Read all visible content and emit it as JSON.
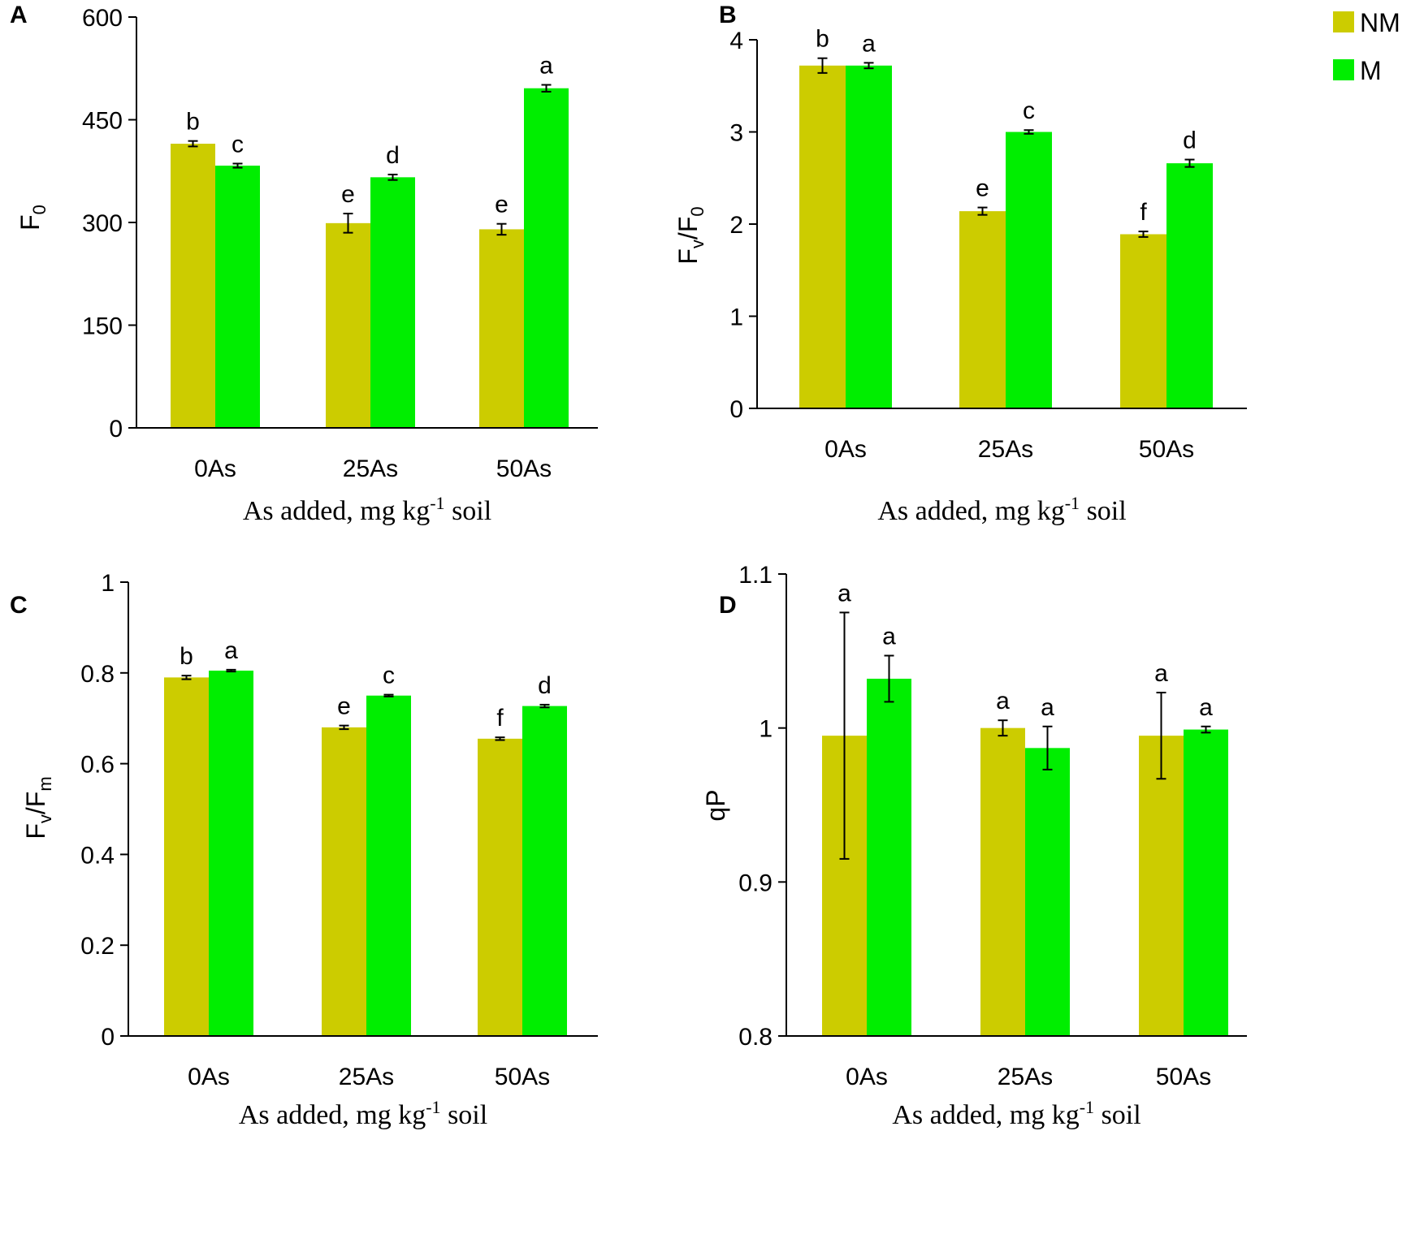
{
  "colors": {
    "NM": "#cccc00",
    "M": "#00ee00",
    "axis": "#000000"
  },
  "legend": [
    {
      "key": "NM",
      "label": "NM"
    },
    {
      "key": "M",
      "label": "M"
    }
  ],
  "chart_data": [
    {
      "type": "bar",
      "panel": "A",
      "categories": [
        "0As",
        "25As",
        "50As"
      ],
      "series": [
        {
          "name": "NM",
          "values": [
            415,
            299,
            290
          ],
          "errors": [
            4,
            14,
            8
          ],
          "letters": [
            "b",
            "e",
            "e"
          ]
        },
        {
          "name": "M",
          "values": [
            383,
            366,
            496
          ],
          "errors": [
            3,
            4,
            5
          ],
          "letters": [
            "c",
            "d",
            "a"
          ]
        }
      ],
      "ylim": [
        0,
        600
      ],
      "yticks": [
        0,
        150,
        300,
        450,
        600
      ],
      "ylabel": "F0",
      "ylabel_main": "F",
      "ylabel_sub": "0",
      "xlabel_pre": "As added, mg kg",
      "xlabel_sup": "-1",
      "xlabel_post": " soil"
    },
    {
      "type": "bar",
      "panel": "B",
      "categories": [
        "0As",
        "25As",
        "50As"
      ],
      "series": [
        {
          "name": "NM",
          "values": [
            3.72,
            2.14,
            1.89
          ],
          "errors": [
            0.08,
            0.04,
            0.03
          ],
          "letters": [
            "b",
            "e",
            "f"
          ]
        },
        {
          "name": "M",
          "values": [
            3.72,
            3.0,
            2.66
          ],
          "errors": [
            0.03,
            0.02,
            0.04
          ],
          "letters": [
            "a",
            "c",
            "d"
          ]
        }
      ],
      "ylim": [
        0,
        4
      ],
      "yticks": [
        0,
        1,
        2,
        3,
        4
      ],
      "ylabel": "Fv/F0",
      "ylabel_main": "F",
      "ylabel_sub": "v",
      "ylabel_mid": "/F",
      "ylabel_sub2": "0",
      "xlabel_pre": "As added, mg kg",
      "xlabel_sup": "-1",
      "xlabel_post": " soil"
    },
    {
      "type": "bar",
      "panel": "C",
      "categories": [
        "0As",
        "25As",
        "50As"
      ],
      "series": [
        {
          "name": "NM",
          "values": [
            0.79,
            0.68,
            0.655
          ],
          "errors": [
            0.004,
            0.004,
            0.003
          ],
          "letters": [
            "b",
            "e",
            "f"
          ]
        },
        {
          "name": "M",
          "values": [
            0.805,
            0.75,
            0.727
          ],
          "errors": [
            0.002,
            0.002,
            0.003
          ],
          "letters": [
            "a",
            "c",
            "d"
          ]
        }
      ],
      "ylim": [
        0,
        1
      ],
      "yticks": [
        0,
        0.2,
        0.4,
        0.6,
        0.8,
        1
      ],
      "ylabel": "Fv/Fm",
      "ylabel_main": "F",
      "ylabel_sub": "v",
      "ylabel_mid": "/F",
      "ylabel_sub2": "m",
      "xlabel_pre": "As added, mg kg",
      "xlabel_sup": "-1",
      "xlabel_post": " soil"
    },
    {
      "type": "bar",
      "panel": "D",
      "categories": [
        "0As",
        "25As",
        "50As"
      ],
      "series": [
        {
          "name": "NM",
          "values": [
            0.995,
            1.0,
            0.995
          ],
          "errors": [
            0.08,
            0.005,
            0.028
          ],
          "letters": [
            "a",
            "a",
            "a"
          ]
        },
        {
          "name": "M",
          "values": [
            1.032,
            0.987,
            0.999
          ],
          "errors": [
            0.015,
            0.014,
            0.002
          ],
          "letters": [
            "a",
            "a",
            "a"
          ]
        }
      ],
      "ylim": [
        0.8,
        1.1
      ],
      "yticks": [
        0.8,
        0.9,
        1,
        1.1
      ],
      "ylabel": "qP",
      "ylabel_main": "qP",
      "xlabel_pre": "As added, mg kg",
      "xlabel_sup": "-1",
      "xlabel_post": " soil"
    }
  ]
}
